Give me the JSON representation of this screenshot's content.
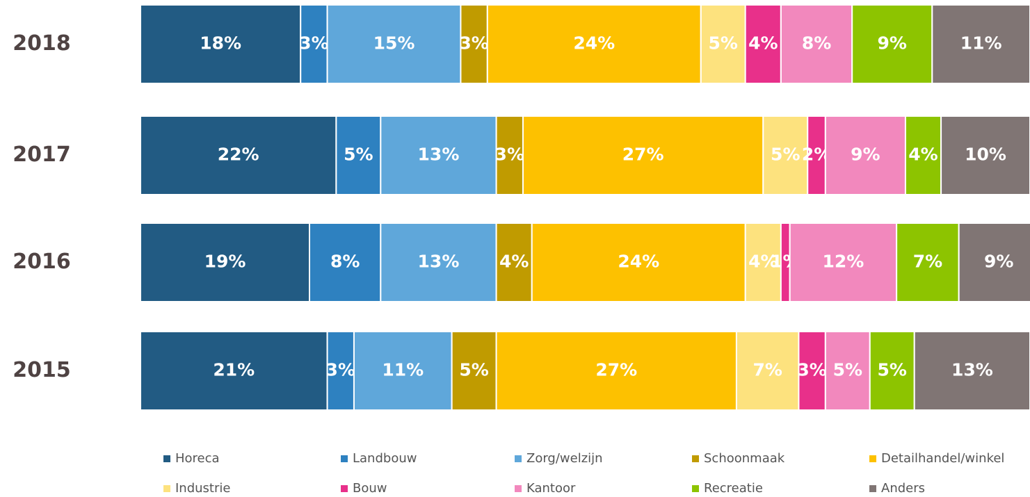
{
  "chart_data": {
    "type": "stacked-barh",
    "categories": [
      "2018",
      "2017",
      "2016",
      "2015"
    ],
    "xlim": [
      0,
      100
    ],
    "legend": "bottom",
    "series": [
      {
        "name": "Horeca",
        "color": "#225b83",
        "values": [
          18,
          22,
          19,
          21
        ],
        "value_labels": [
          "18%",
          "22%",
          "19%",
          "21%"
        ]
      },
      {
        "name": "Landbouw",
        "color": "#2e81c0",
        "values": [
          3,
          5,
          8,
          3
        ],
        "value_labels": [
          "3%",
          "5%",
          "8%",
          "3%"
        ]
      },
      {
        "name": "Zorg/welzijn",
        "color": "#5fa7da",
        "values": [
          15,
          13,
          13,
          11
        ],
        "value_labels": [
          "15%",
          "13%",
          "13%",
          "11%"
        ]
      },
      {
        "name": "Schoonmaak",
        "color": "#c09b00",
        "values": [
          3,
          3,
          4,
          5
        ],
        "value_labels": [
          "3%",
          "3%",
          "4%",
          "5%"
        ]
      },
      {
        "name": "Detailhandel/winkel",
        "color": "#fdc100",
        "values": [
          24,
          27,
          24,
          27
        ],
        "value_labels": [
          "24%",
          "27%",
          "24%",
          "27%"
        ]
      },
      {
        "name": "Industrie",
        "color": "#fde27e",
        "values": [
          5,
          5,
          4,
          7
        ],
        "value_labels": [
          "5%",
          "5%",
          "4%",
          "7%"
        ]
      },
      {
        "name": "Bouw",
        "color": "#e8308a",
        "values": [
          4,
          2,
          1,
          3
        ],
        "value_labels": [
          "4%",
          "2%",
          "1%",
          "3%"
        ]
      },
      {
        "name": "Kantoor",
        "color": "#f288bd",
        "values": [
          8,
          9,
          12,
          5
        ],
        "value_labels": [
          "8%",
          "9%",
          "12%",
          "5%"
        ]
      },
      {
        "name": "Recreatie",
        "color": "#8dc400",
        "values": [
          9,
          4,
          7,
          5
        ],
        "value_labels": [
          "9%",
          "4%",
          "7%",
          "5%"
        ]
      },
      {
        "name": "Anders",
        "color": "#807574",
        "values": [
          11,
          10,
          9,
          13
        ],
        "value_labels": [
          "11%",
          "10%",
          "9%",
          "13%"
        ]
      }
    ]
  }
}
